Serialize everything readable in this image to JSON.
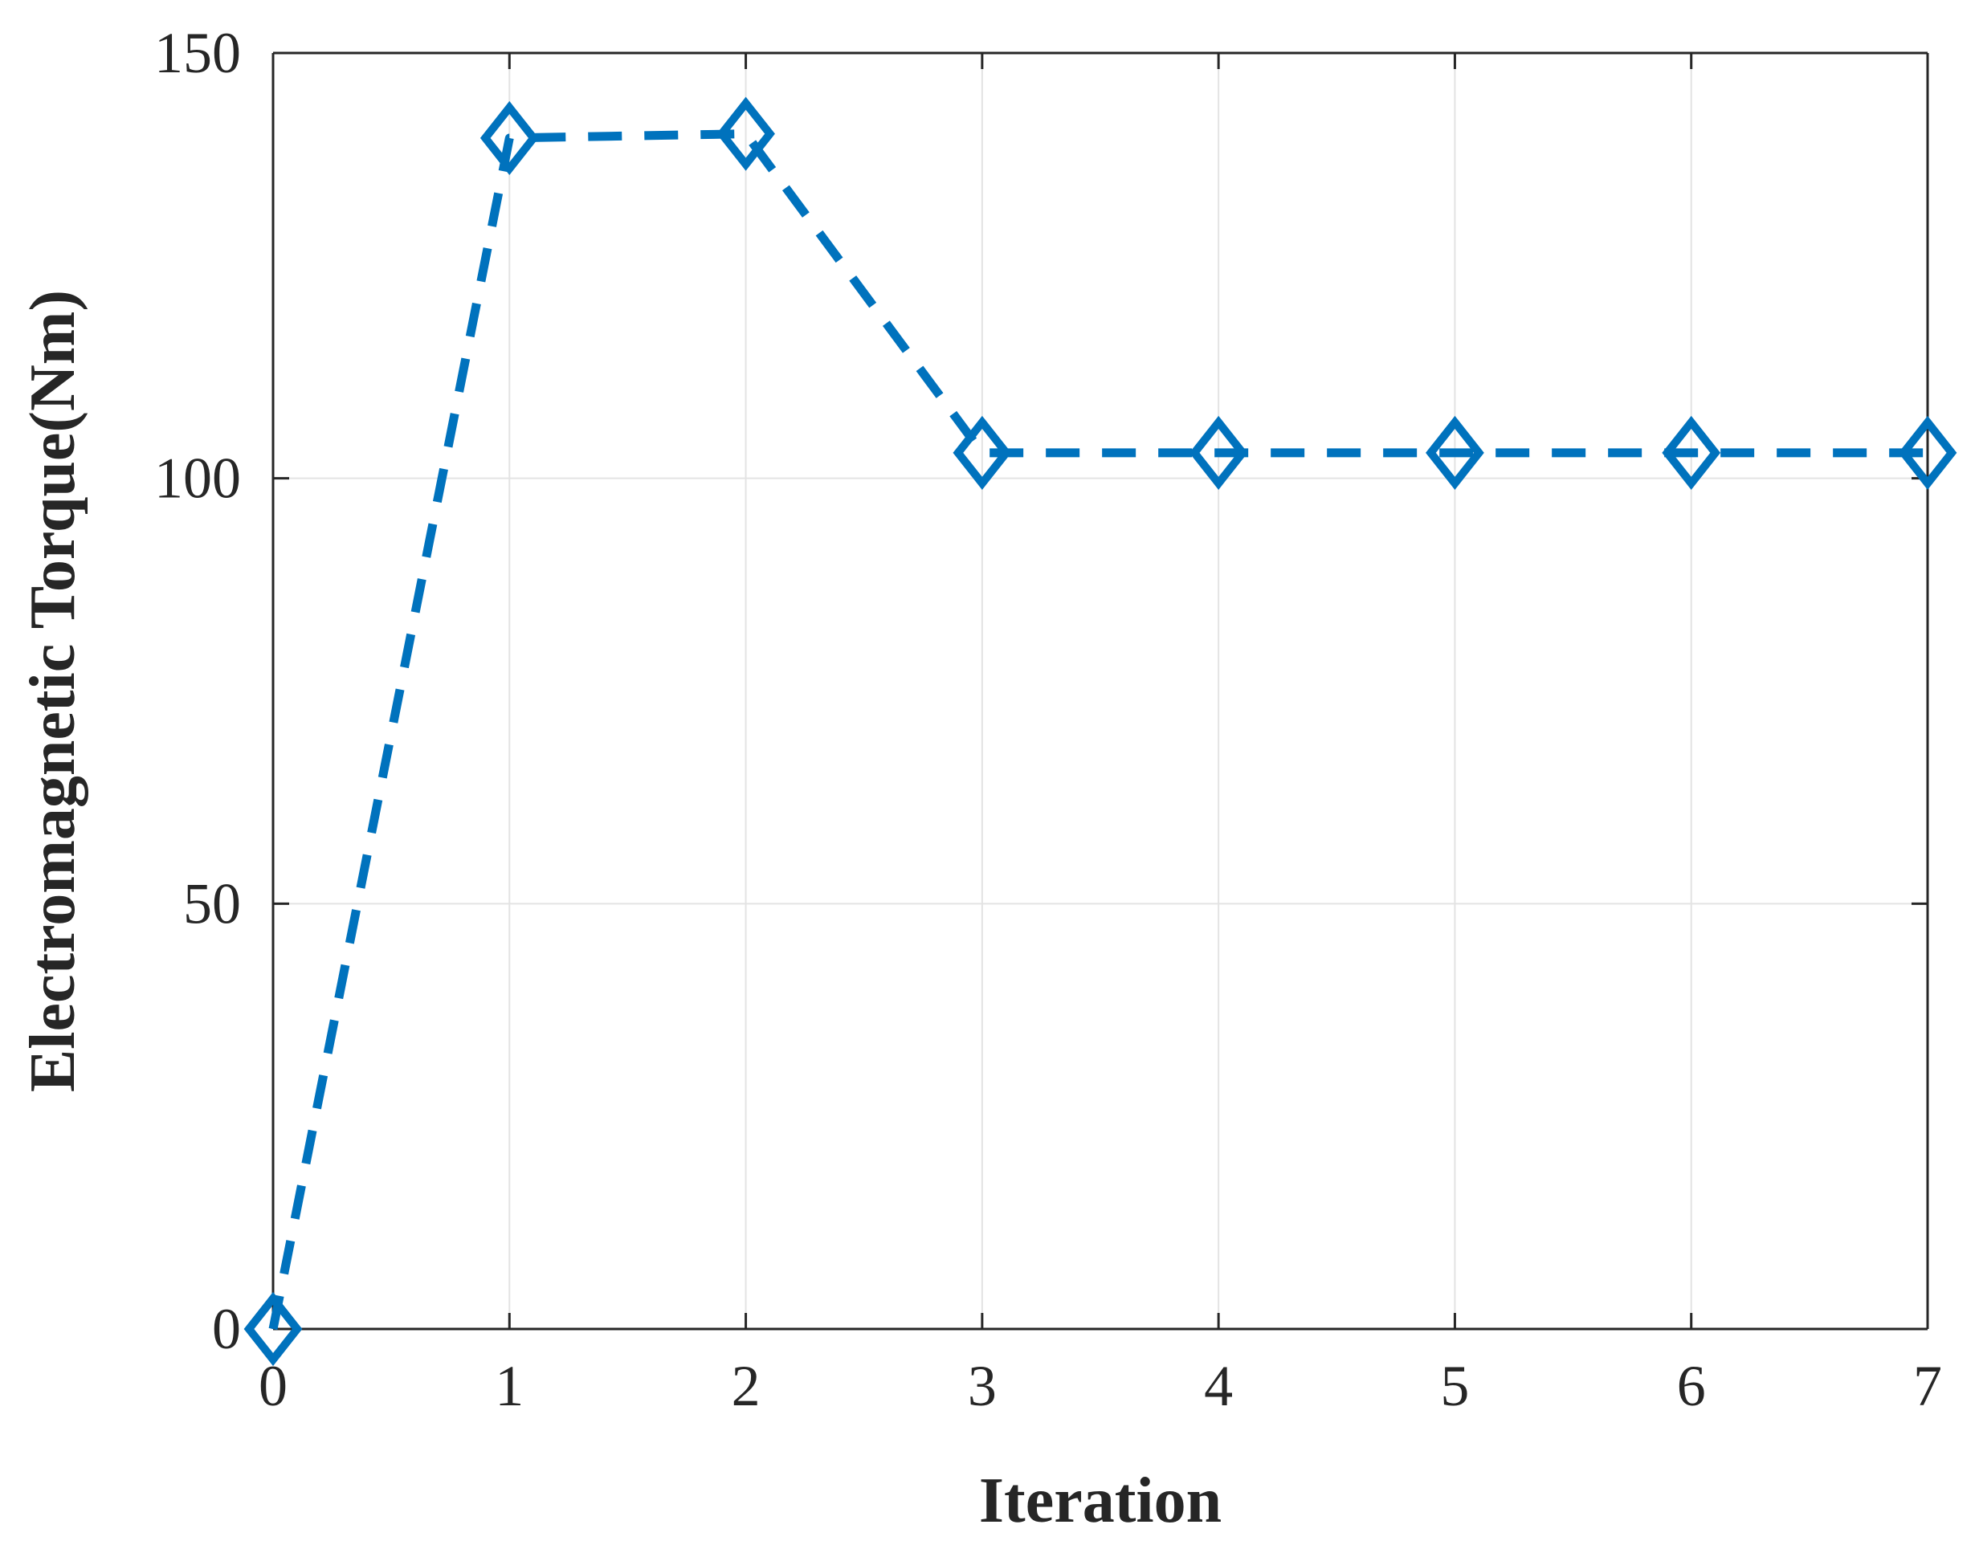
{
  "chart_data": {
    "type": "line",
    "title": "",
    "xlabel": "Iteration",
    "ylabel": "Electromagnetic Torque(Nm)",
    "xlim": [
      0,
      7
    ],
    "ylim": [
      0,
      150
    ],
    "x_ticks": [
      0,
      1,
      2,
      3,
      4,
      5,
      6,
      7
    ],
    "y_ticks": [
      0,
      50,
      100,
      150
    ],
    "grid": true,
    "legend": "none",
    "series": [
      {
        "x": [
          0,
          1,
          2,
          3,
          4,
          5,
          6,
          7
        ],
        "values": [
          0,
          140,
          140.5,
          103,
          103,
          103,
          103,
          103
        ],
        "color": "#0072BD",
        "line_style": "dashed",
        "marker": "diamond"
      }
    ]
  }
}
